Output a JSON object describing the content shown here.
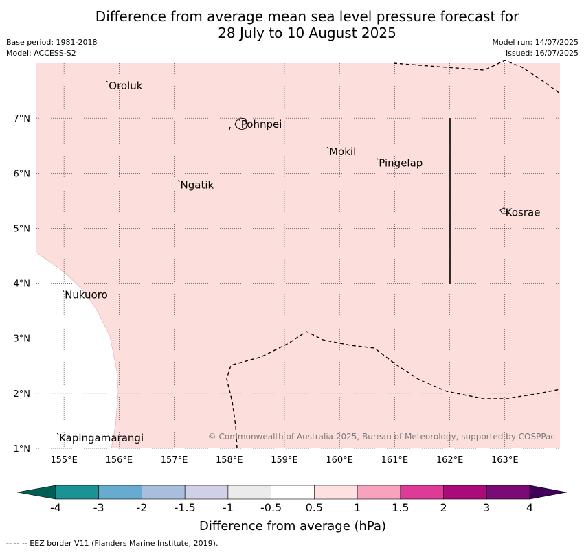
{
  "header": {
    "title_line1": "Difference from average mean sea level pressure forecast for",
    "title_line2": "28 July to 10 August 2025",
    "base_period": "Base period: 1981-2018",
    "model": "Model: ACCESS-S2",
    "model_run": "Model run: 14/07/2025",
    "issued": "Issued: 16/07/2025"
  },
  "map": {
    "lon_range": [
      154.5,
      164.0
    ],
    "lat_range": [
      1.0,
      8.0
    ],
    "lon_ticks": [
      "155°E",
      "156°E",
      "157°E",
      "158°E",
      "159°E",
      "160°E",
      "161°E",
      "162°E",
      "163°E"
    ],
    "lat_ticks": [
      "1°N",
      "2°N",
      "3°N",
      "4°N",
      "5°N",
      "6°N",
      "7°N"
    ],
    "fill_color": "#fcdedd",
    "places": [
      {
        "name": "Oroluk",
        "lon": 155.8,
        "lat": 7.6
      },
      {
        "name": "Pohnpei",
        "lon": 158.2,
        "lat": 6.9
      },
      {
        "name": "Mokil",
        "lon": 159.8,
        "lat": 6.4
      },
      {
        "name": "Pingelap",
        "lon": 160.7,
        "lat": 6.2
      },
      {
        "name": "Ngatik",
        "lon": 157.1,
        "lat": 5.8
      },
      {
        "name": "Kosrae",
        "lon": 163.0,
        "lat": 5.3
      },
      {
        "name": "Nukuoro",
        "lon": 155.0,
        "lat": 3.8
      },
      {
        "name": "Kapingamarangi",
        "lon": 154.9,
        "lat": 1.2
      }
    ],
    "copyright": "© Commonwealth of Australia 2025, Bureau of Meteorology, supported by COSPPac"
  },
  "colorbar": {
    "label": "Difference from average (hPa)",
    "ticks": [
      "-4",
      "-3",
      "-2",
      "-1.5",
      "-1",
      "-0.5",
      "0.5",
      "1",
      "1.5",
      "2",
      "3",
      "4"
    ],
    "colors": [
      "#1a9296",
      "#67abd0",
      "#a9bedd",
      "#d0d0e6",
      "#ebebeb",
      "#ffffff",
      "#fde1e1",
      "#f7a3bd",
      "#de3a98",
      "#ab0a7b",
      "#7a0a77"
    ],
    "end_low_color": "#005f55",
    "end_high_color": "#3e0058"
  },
  "footer": {
    "legend_text": "--  --  -- EEZ border V11 (Flanders Marine Institute, 2019)."
  }
}
